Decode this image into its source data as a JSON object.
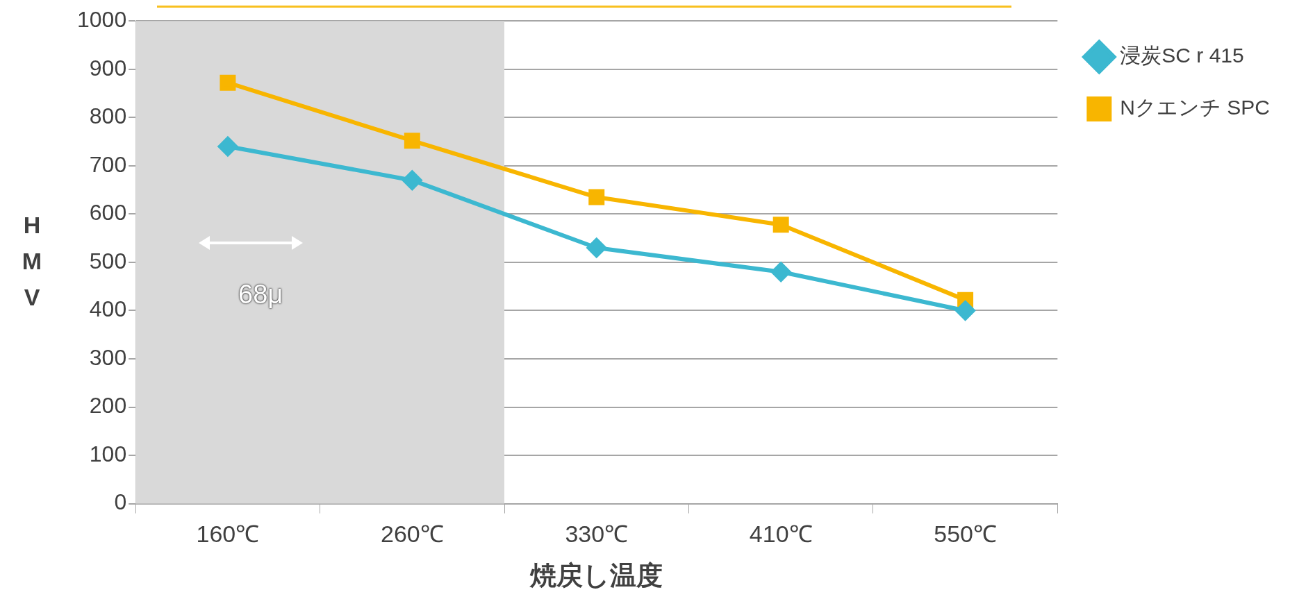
{
  "chart_data": {
    "type": "line",
    "categories": [
      "160℃",
      "260℃",
      "330℃",
      "410℃",
      "550℃"
    ],
    "series": [
      {
        "name": "浸炭SC r 415",
        "color": "#3cb8d0",
        "marker": "diamond",
        "values": [
          740,
          670,
          530,
          480,
          400
        ]
      },
      {
        "name": "Nクエンチ SPC",
        "color": "#f8b500",
        "marker": "square",
        "values": [
          872,
          752,
          635,
          578,
          422
        ]
      }
    ],
    "xlabel": "焼戻し温度",
    "ylabel": "HMV",
    "ylim": [
      0,
      1000
    ],
    "yticks": [
      0,
      100,
      200,
      300,
      400,
      500,
      600,
      700,
      800,
      900,
      1000
    ],
    "bands": [
      {
        "axis": "x",
        "from": "160℃",
        "to": "260℃",
        "color": "#d9d9d9"
      }
    ],
    "grid": "y",
    "legend": "right",
    "line_style": "solid",
    "annotations": [
      "68μ"
    ]
  }
}
